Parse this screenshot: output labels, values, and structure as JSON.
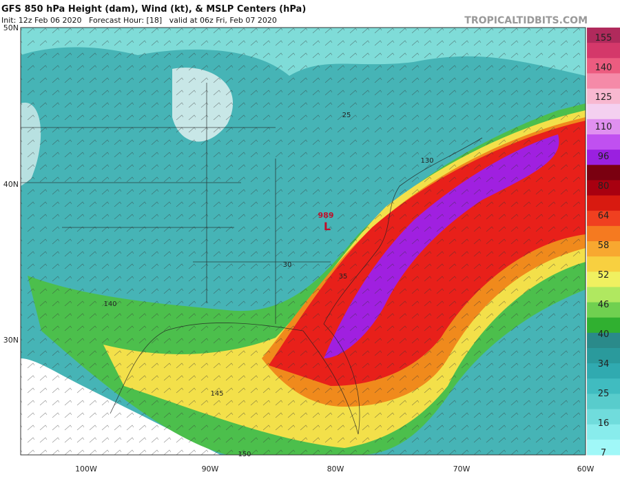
{
  "header": {
    "title": "GFS 850 hPa Height (dam), Wind (kt), & MSLP Centers (hPa)",
    "subtitle": "Init: 12z Feb 06 2020   Forecast Hour: [18]   valid at 06z Fri, Feb 07 2020",
    "watermark": "TROPICALTIDBITS.COM"
  },
  "latitude_labels": [
    "50N",
    "40N",
    "30N"
  ],
  "longitude_labels": [
    "100W",
    "90W",
    "80W",
    "70W",
    "60W"
  ],
  "colorbar": {
    "labels": [
      "155",
      "140",
      "125",
      "110",
      "96",
      "80",
      "64",
      "58",
      "52",
      "46",
      "40",
      "34",
      "25",
      "16",
      "7"
    ]
  },
  "contour_labels": [
    "25",
    "130",
    "30",
    "35",
    "140",
    "145",
    "150"
  ],
  "low_center": {
    "pressure": "989",
    "symbol": "L"
  }
}
